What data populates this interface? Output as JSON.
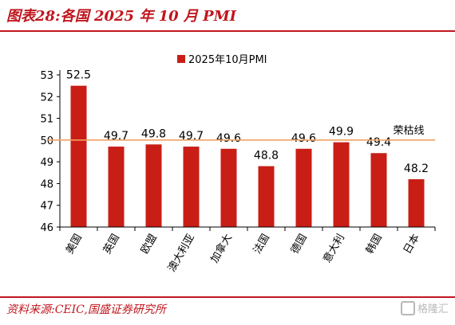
{
  "title": "图表28:各国 2025 年 10 月 PMI",
  "source": "资料来源:CEIC,国盛证券研究所",
  "watermark": "格隆汇",
  "colors": {
    "brand": "#c0161e",
    "bar": "#c91e16",
    "reference_line": "#f0a060"
  },
  "chart_data": {
    "type": "bar",
    "categories": [
      "美国",
      "英国",
      "欧盟",
      "澳大利亚",
      "加拿大",
      "法国",
      "德国",
      "意大利",
      "韩国",
      "日本"
    ],
    "series": [
      {
        "name": "2025年10月PMI",
        "values": [
          52.5,
          49.7,
          49.8,
          49.7,
          49.6,
          48.8,
          49.6,
          49.9,
          49.4,
          48.2
        ]
      }
    ],
    "data_labels": [
      "52.5",
      "49.7",
      "49.8",
      "49.7",
      "49.6",
      "48.8",
      "49.6",
      "49.9",
      "49.4",
      "48.2"
    ],
    "ylim": [
      46,
      53
    ],
    "yticks": [
      46,
      47,
      48,
      49,
      50,
      51,
      52,
      53
    ],
    "reference_line": {
      "value": 50,
      "label": "荣枯线"
    },
    "legend_position": "top-center",
    "grid": false
  }
}
